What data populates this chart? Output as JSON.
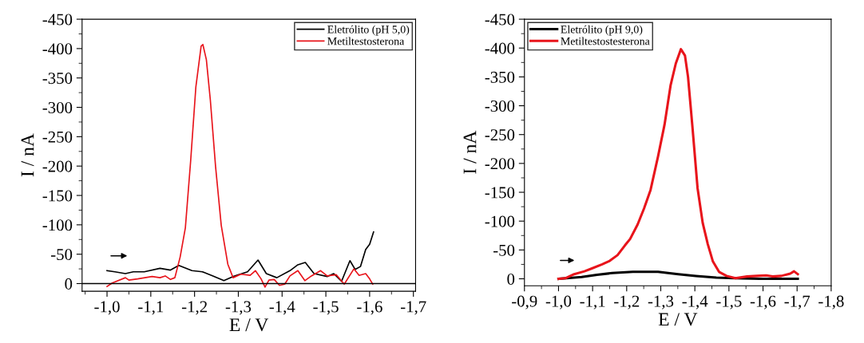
{
  "chart_data": [
    {
      "type": "line",
      "xlabel": "E / V",
      "ylabel": "I / nA",
      "legend": "top right",
      "grid": false,
      "xlim": [
        -0.943,
        -1.705
      ],
      "ylim": [
        13,
        -450
      ],
      "xticks": [
        {
          "value": -1.0,
          "label": "-1,0"
        },
        {
          "value": -1.1,
          "label": "-1,1"
        },
        {
          "value": -1.2,
          "label": "-1,2"
        },
        {
          "value": -1.3,
          "label": "-1,3"
        },
        {
          "value": -1.4,
          "label": "-1,4"
        },
        {
          "value": -1.5,
          "label": "-1,5"
        },
        {
          "value": -1.6,
          "label": "-1,6"
        },
        {
          "value": -1.7,
          "label": "-1,7"
        }
      ],
      "yticks": [
        -450,
        -400,
        -350,
        -300,
        -250,
        -200,
        -150,
        -100,
        -50,
        0
      ],
      "ref_lines": [
        {
          "axis": "y",
          "value": 0,
          "color": "#000000"
        }
      ],
      "series": [
        {
          "name": "Eletrólito (pH 5,0)",
          "color": "#000000",
          "x": [
            -1.0,
            -1.018,
            -1.042,
            -1.06,
            -1.085,
            -1.121,
            -1.145,
            -1.164,
            -1.194,
            -1.218,
            -1.242,
            -1.267,
            -1.291,
            -1.321,
            -1.345,
            -1.364,
            -1.388,
            -1.418,
            -1.436,
            -1.453,
            -1.473,
            -1.503,
            -1.518,
            -1.536,
            -1.555,
            -1.567,
            -1.579,
            -1.591,
            -1.6,
            -1.609
          ],
          "values": [
            -22,
            -20,
            -17,
            -20,
            -20,
            -26,
            -23,
            -31,
            -22,
            -20,
            -13,
            -5,
            -13,
            -20,
            -40,
            -17,
            -10,
            -22,
            -32,
            -36,
            -17,
            -12,
            -17,
            -4,
            -39,
            -24,
            -29,
            -58,
            -67,
            -88
          ]
        },
        {
          "name": "Metiltestosterona",
          "color": "#e8141b",
          "x": [
            -1.0,
            -1.012,
            -1.042,
            -1.05,
            -1.07,
            -1.103,
            -1.121,
            -1.133,
            -1.145,
            -1.155,
            -1.167,
            -1.179,
            -1.191,
            -1.203,
            -1.215,
            -1.219,
            -1.227,
            -1.236,
            -1.248,
            -1.261,
            -1.276,
            -1.288,
            -1.306,
            -1.327,
            -1.339,
            -1.352,
            -1.361,
            -1.37,
            -1.382,
            -1.394,
            -1.406,
            -1.418,
            -1.436,
            -1.452,
            -1.467,
            -1.488,
            -1.503,
            -1.524,
            -1.542,
            -1.564,
            -1.576,
            -1.591,
            -1.6,
            -1.607
          ],
          "values": [
            5,
            -1,
            -10,
            -6,
            -8,
            -12,
            -10,
            -13,
            -7,
            -10,
            -45,
            -95,
            -208,
            -335,
            -404,
            -407,
            -381,
            -313,
            -199,
            -99,
            -33,
            -10,
            -16,
            -14,
            -22,
            -8,
            6,
            -6,
            -7,
            3,
            1,
            -13,
            -22,
            -5,
            -13,
            -22,
            -13,
            -15,
            1,
            -25,
            -14,
            -17,
            -8,
            1
          ]
        }
      ]
    },
    {
      "type": "line",
      "xlabel": "E / V",
      "ylabel": "I / nA",
      "legend": "top left",
      "grid": false,
      "xlim": [
        -0.9,
        -1.8
      ],
      "ylim": [
        12,
        -450
      ],
      "xticks": [
        {
          "value": -0.9,
          "label": "-0,9"
        },
        {
          "value": -1.0,
          "label": "-1,0"
        },
        {
          "value": -1.1,
          "label": "-1,1"
        },
        {
          "value": -1.2,
          "label": "-1,2"
        },
        {
          "value": -1.3,
          "label": "-1,3"
        },
        {
          "value": -1.4,
          "label": "-1,4"
        },
        {
          "value": -1.5,
          "label": "-1,5"
        },
        {
          "value": -1.6,
          "label": "-1,6"
        },
        {
          "value": -1.7,
          "label": "-1,7"
        },
        {
          "value": -1.8,
          "label": "-1,8"
        }
      ],
      "yticks": [
        -450,
        -400,
        -350,
        -300,
        -250,
        -200,
        -150,
        -100,
        -50,
        0
      ],
      "series": [
        {
          "name": "Eletrólito (pH 9,0)",
          "color": "#000000",
          "x": [
            -1.0,
            -1.024,
            -1.068,
            -1.113,
            -1.158,
            -1.218,
            -1.292,
            -1.351,
            -1.403,
            -1.463,
            -1.515,
            -1.589,
            -1.702
          ],
          "values": [
            0,
            -1,
            -3,
            -7,
            -10,
            -12,
            -12,
            -8,
            -5,
            -2,
            -1,
            0,
            0
          ]
        },
        {
          "name": "Metiltestostesterona",
          "color": "#e8141b",
          "x": [
            -1.0,
            -1.02,
            -1.046,
            -1.076,
            -1.098,
            -1.128,
            -1.15,
            -1.173,
            -1.195,
            -1.21,
            -1.232,
            -1.251,
            -1.27,
            -1.292,
            -1.311,
            -1.329,
            -1.344,
            -1.359,
            -1.371,
            -1.38,
            -1.393,
            -1.408,
            -1.423,
            -1.438,
            -1.453,
            -1.471,
            -1.493,
            -1.519,
            -1.553,
            -1.583,
            -1.609,
            -1.628,
            -1.654,
            -1.68,
            -1.691,
            -1.702
          ],
          "values": [
            0,
            -1,
            -8,
            -13,
            -18,
            -25,
            -31,
            -41,
            -58,
            -69,
            -94,
            -122,
            -154,
            -212,
            -267,
            -336,
            -373,
            -398,
            -387,
            -350,
            -263,
            -157,
            -97,
            -60,
            -30,
            -12,
            -5,
            -1,
            -4,
            -5,
            -6,
            -4,
            -5,
            -9,
            -13,
            -8
          ]
        }
      ]
    }
  ]
}
